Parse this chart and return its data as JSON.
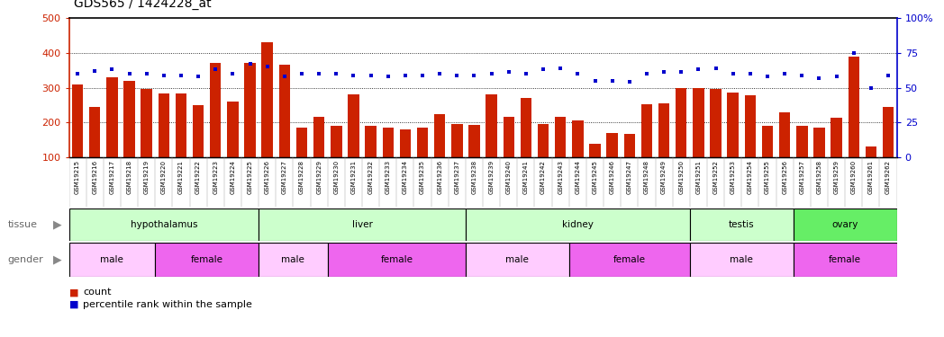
{
  "title": "GDS565 / 1424228_at",
  "samples": [
    "GSM19215",
    "GSM19216",
    "GSM19217",
    "GSM19218",
    "GSM19219",
    "GSM19220",
    "GSM19221",
    "GSM19222",
    "GSM19223",
    "GSM19224",
    "GSM19225",
    "GSM19226",
    "GSM19227",
    "GSM19228",
    "GSM19229",
    "GSM19230",
    "GSM19231",
    "GSM19232",
    "GSM19233",
    "GSM19234",
    "GSM19235",
    "GSM19236",
    "GSM19237",
    "GSM19238",
    "GSM19239",
    "GSM19240",
    "GSM19241",
    "GSM19242",
    "GSM19243",
    "GSM19244",
    "GSM19245",
    "GSM19246",
    "GSM19247",
    "GSM19248",
    "GSM19249",
    "GSM19250",
    "GSM19251",
    "GSM19252",
    "GSM19253",
    "GSM19254",
    "GSM19255",
    "GSM19256",
    "GSM19257",
    "GSM19258",
    "GSM19259",
    "GSM19260",
    "GSM19261",
    "GSM19262"
  ],
  "counts": [
    310,
    245,
    330,
    320,
    297,
    283,
    283,
    250,
    370,
    260,
    370,
    430,
    365,
    185,
    215,
    190,
    280,
    190,
    185,
    180,
    185,
    225,
    195,
    192,
    280,
    215,
    270,
    195,
    215,
    207,
    140,
    170,
    168,
    253,
    255,
    300,
    300,
    295,
    285,
    278,
    190,
    228,
    190,
    185,
    213,
    390,
    130,
    245
  ],
  "percentiles": [
    60,
    62,
    63,
    60,
    60,
    59,
    59,
    58,
    63,
    60,
    67,
    65,
    58,
    60,
    60,
    60,
    59,
    59,
    58,
    59,
    59,
    60,
    59,
    59,
    60,
    61,
    60,
    63,
    64,
    60,
    55,
    55,
    54,
    60,
    61,
    61,
    63,
    64,
    60,
    60,
    58,
    60,
    59,
    57,
    58,
    75,
    50,
    59
  ],
  "tissue_groups": [
    {
      "label": "hypothalamus",
      "start": 0,
      "end": 11,
      "color": "#ccffcc"
    },
    {
      "label": "liver",
      "start": 11,
      "end": 23,
      "color": "#ccffcc"
    },
    {
      "label": "kidney",
      "start": 23,
      "end": 36,
      "color": "#ccffcc"
    },
    {
      "label": "testis",
      "start": 36,
      "end": 42,
      "color": "#ccffcc"
    },
    {
      "label": "ovary",
      "start": 42,
      "end": 48,
      "color": "#66ee66"
    }
  ],
  "gender_groups": [
    {
      "label": "male",
      "start": 0,
      "end": 5,
      "color": "#ffccff"
    },
    {
      "label": "female",
      "start": 5,
      "end": 11,
      "color": "#ee66ee"
    },
    {
      "label": "male",
      "start": 11,
      "end": 15,
      "color": "#ffccff"
    },
    {
      "label": "female",
      "start": 15,
      "end": 23,
      "color": "#ee66ee"
    },
    {
      "label": "male",
      "start": 23,
      "end": 29,
      "color": "#ffccff"
    },
    {
      "label": "female",
      "start": 29,
      "end": 36,
      "color": "#ee66ee"
    },
    {
      "label": "male",
      "start": 36,
      "end": 42,
      "color": "#ffccff"
    },
    {
      "label": "female",
      "start": 42,
      "end": 48,
      "color": "#ee66ee"
    }
  ],
  "bar_color": "#cc2200",
  "dot_color": "#0000cc",
  "ylim_left": [
    100,
    500
  ],
  "ylim_right": [
    0,
    100
  ],
  "yticks_left": [
    100,
    200,
    300,
    400,
    500
  ],
  "yticks_right": [
    0,
    25,
    50,
    75,
    100
  ],
  "grid_values": [
    200,
    300,
    400
  ],
  "bg_color": "#ffffff",
  "xtick_bg": "#e8e8e8"
}
